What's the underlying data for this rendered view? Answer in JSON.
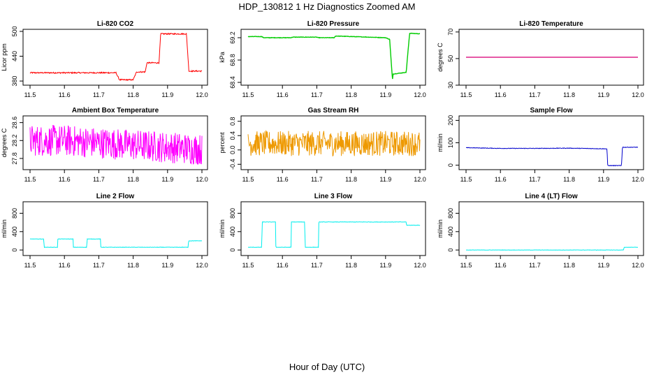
{
  "page": {
    "title": "HDP_130812  1 Hz Diagnostics Zoomed AM",
    "x_title": "Hour of Day (UTC)"
  },
  "chart_data": [
    {
      "type": "line",
      "title": "Li-820 CO2",
      "ylabel": "Licor ppm",
      "color": "#ff0000",
      "xlim": [
        11.5,
        12.0
      ],
      "ylim": [
        370,
        505
      ],
      "x_ticks": [
        "11.5",
        "11.6",
        "11.7",
        "11.8",
        "11.9",
        "12.0"
      ],
      "y_ticks": [
        "380",
        "440",
        "500"
      ],
      "y_tick_values": [
        380,
        440,
        500
      ],
      "noise": 1.5,
      "x": [
        11.5,
        11.75,
        11.76,
        11.8,
        11.81,
        11.835,
        11.84,
        11.875,
        11.88,
        11.955,
        11.962,
        12.0
      ],
      "y": [
        400,
        400,
        383,
        383,
        402,
        402,
        424,
        424,
        494,
        494,
        404,
        404
      ]
    },
    {
      "type": "line",
      "title": "Li-820 Pressure",
      "ylabel": "kPa",
      "color": "#00cc00",
      "xlim": [
        11.5,
        12.0
      ],
      "ylim": [
        68.35,
        69.35
      ],
      "x_ticks": [
        "11.5",
        "11.6",
        "11.7",
        "11.8",
        "11.9",
        "12.0"
      ],
      "y_ticks": [
        "68.4",
        "68.8",
        "69.2"
      ],
      "y_tick_values": [
        68.4,
        68.8,
        69.2
      ],
      "noise": 0.004,
      "x": [
        11.5,
        11.54,
        11.545,
        11.625,
        11.63,
        11.7,
        11.705,
        11.75,
        11.755,
        11.9,
        11.912,
        11.92,
        11.922,
        11.96,
        11.97,
        12.0
      ],
      "y": [
        69.22,
        69.22,
        69.2,
        69.2,
        69.21,
        69.21,
        69.2,
        69.2,
        69.23,
        69.2,
        69.17,
        68.45,
        68.55,
        68.58,
        69.28,
        69.27
      ]
    },
    {
      "type": "line",
      "title": "Li-820 Temperature",
      "ylabel": "degrees C",
      "color": "#dd2288",
      "xlim": [
        11.5,
        12.0
      ],
      "ylim": [
        30,
        72
      ],
      "x_ticks": [
        "11.5",
        "11.6",
        "11.7",
        "11.8",
        "11.9",
        "12.0"
      ],
      "y_ticks": [
        "30",
        "50",
        "70"
      ],
      "y_tick_values": [
        30,
        50,
        70
      ],
      "noise": 0,
      "x": [
        11.5,
        12.0
      ],
      "y": [
        51,
        51
      ]
    },
    {
      "type": "line",
      "title": "Ambient Box Temperature",
      "ylabel": "degrees C",
      "color": "#ff00ff",
      "xlim": [
        11.5,
        12.0
      ],
      "ylim": [
        27.55,
        28.75
      ],
      "x_ticks": [
        "11.5",
        "11.6",
        "11.7",
        "11.8",
        "11.9",
        "12.0"
      ],
      "y_ticks": [
        "27.8",
        "28.2",
        "28.6"
      ],
      "y_tick_values": [
        27.8,
        28.2,
        28.6
      ],
      "noise": 0.35,
      "x": [
        11.5,
        11.6,
        11.7,
        11.8,
        11.9,
        12.0
      ],
      "y": [
        28.2,
        28.2,
        28.15,
        28.1,
        28.05,
        28.0
      ]
    },
    {
      "type": "line",
      "title": "Gas Stream RH",
      "ylabel": "percent",
      "color": "#ee9900",
      "xlim": [
        11.5,
        12.0
      ],
      "ylim": [
        -0.55,
        0.95
      ],
      "x_ticks": [
        "11.5",
        "11.6",
        "11.7",
        "11.8",
        "11.9",
        "12.0"
      ],
      "y_ticks": [
        "-0.4",
        "0.0",
        "0.4",
        "0.8"
      ],
      "y_tick_values": [
        -0.4,
        0.0,
        0.4,
        0.8
      ],
      "noise": 0.35,
      "x": [
        11.5,
        12.0
      ],
      "y": [
        0.18,
        0.18
      ]
    },
    {
      "type": "line",
      "title": "Sample Flow",
      "ylabel": "ml/min",
      "color": "#0000cc",
      "xlim": [
        11.5,
        12.0
      ],
      "ylim": [
        -20,
        220
      ],
      "x_ticks": [
        "11.5",
        "11.6",
        "11.7",
        "11.8",
        "11.9",
        "12.0"
      ],
      "y_ticks": [
        "0",
        "100",
        "200"
      ],
      "y_tick_values": [
        0,
        100,
        200
      ],
      "noise": 1.2,
      "x": [
        11.5,
        11.6,
        11.7,
        11.8,
        11.91,
        11.912,
        11.952,
        11.955,
        12.0
      ],
      "y": [
        78,
        75,
        75,
        76,
        73,
        -2,
        -2,
        80,
        80
      ]
    },
    {
      "type": "line",
      "title": "Line 2 Flow",
      "ylabel": "ml/min",
      "color": "#00eeee",
      "xlim": [
        11.5,
        12.0
      ],
      "ylim": [
        -120,
        1050
      ],
      "x_ticks": [
        "11.5",
        "11.6",
        "11.7",
        "11.8",
        "11.9",
        "12.0"
      ],
      "y_ticks": [
        "0",
        "400",
        "800"
      ],
      "y_tick_values": [
        0,
        400,
        800
      ],
      "noise": 4,
      "x": [
        11.5,
        11.54,
        11.541,
        11.58,
        11.581,
        11.625,
        11.626,
        11.665,
        11.666,
        11.705,
        11.706,
        11.96,
        11.961,
        12.0
      ],
      "y": [
        240,
        240,
        60,
        60,
        240,
        240,
        60,
        60,
        240,
        240,
        60,
        60,
        200,
        200
      ]
    },
    {
      "type": "line",
      "title": "Line 3 Flow",
      "ylabel": "ml/min",
      "color": "#00eeee",
      "xlim": [
        11.5,
        12.0
      ],
      "ylim": [
        -120,
        1050
      ],
      "x_ticks": [
        "11.5",
        "11.6",
        "11.7",
        "11.8",
        "11.9",
        "12.0"
      ],
      "y_ticks": [
        "0",
        "400",
        "800"
      ],
      "y_tick_values": [
        0,
        400,
        800
      ],
      "noise": 4,
      "x": [
        11.5,
        11.54,
        11.541,
        11.58,
        11.581,
        11.625,
        11.626,
        11.665,
        11.666,
        11.705,
        11.706,
        11.96,
        11.961,
        12.0
      ],
      "y": [
        60,
        60,
        610,
        610,
        60,
        60,
        610,
        610,
        60,
        60,
        610,
        610,
        540,
        540
      ]
    },
    {
      "type": "line",
      "title": "Line 4 (LT) Flow",
      "ylabel": "ml/min",
      "color": "#00eeee",
      "xlim": [
        11.5,
        12.0
      ],
      "ylim": [
        -120,
        1050
      ],
      "x_ticks": [
        "11.5",
        "11.6",
        "11.7",
        "11.8",
        "11.9",
        "12.0"
      ],
      "y_ticks": [
        "0",
        "400",
        "800"
      ],
      "y_tick_values": [
        0,
        400,
        800
      ],
      "noise": 3,
      "x": [
        11.5,
        11.958,
        11.96,
        12.0
      ],
      "y": [
        0,
        0,
        60,
        60
      ]
    }
  ]
}
